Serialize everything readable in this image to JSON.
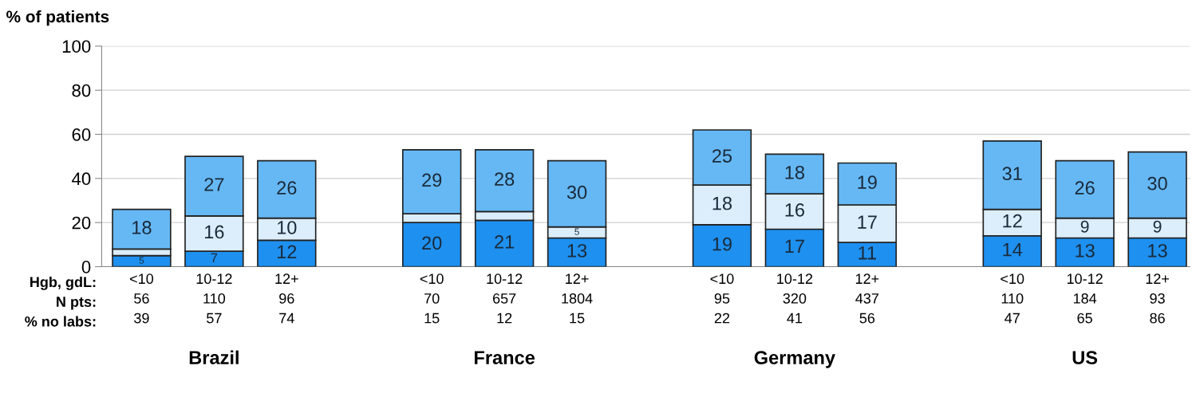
{
  "chart_data": {
    "type": "bar",
    "stacked": true,
    "ylabel": "% of patients",
    "categories": [
      "<10\n56\n39",
      "10-12\n110\n57",
      "12+\n96\n74",
      null,
      "<10\n70\n15",
      "10-12\n657\n12",
      "12+\n1804\n15",
      null,
      "<10\n95\n22",
      "10-12\n320\n41",
      "12+\n437\n56",
      null,
      "<10\n110\n47",
      "10-12\n184\n65",
      "12+\n93\n86"
    ],
    "series": [
      {
        "color": "#1e90f0",
        "values": [
          5,
          7,
          12,
          null,
          20,
          21,
          13,
          null,
          19,
          17,
          11,
          null,
          14,
          13,
          13
        ],
        "value_labels": [
          "5",
          "7",
          "12",
          null,
          "20",
          "21",
          "13",
          null,
          "19",
          "17",
          "11",
          null,
          "14",
          "13",
          "13"
        ]
      },
      {
        "color": "#dcedfb",
        "values": [
          3,
          16,
          10,
          null,
          4,
          4,
          5,
          null,
          18,
          16,
          17,
          null,
          12,
          9,
          9
        ],
        "value_labels": [
          null,
          "16",
          "10",
          null,
          null,
          null,
          "5",
          null,
          "18",
          "16",
          "17",
          null,
          "12",
          "9",
          "9"
        ]
      },
      {
        "color": "#66b8f5",
        "values": [
          18,
          27,
          26,
          null,
          29,
          28,
          30,
          null,
          25,
          18,
          19,
          null,
          31,
          26,
          30
        ],
        "value_labels": [
          "18",
          "27",
          "26",
          null,
          "29",
          "28",
          "30",
          null,
          "25",
          "18",
          "19",
          null,
          "31",
          "26",
          "30"
        ]
      }
    ],
    "ylim": [
      0,
      100
    ],
    "yticks": [
      0,
      20,
      40,
      60,
      80,
      100
    ],
    "grid": "y",
    "annotations": [
      "Hgb, gdL:\nN pts:\n% no labs:",
      "Brazil",
      "France",
      "Germany",
      "US"
    ]
  }
}
